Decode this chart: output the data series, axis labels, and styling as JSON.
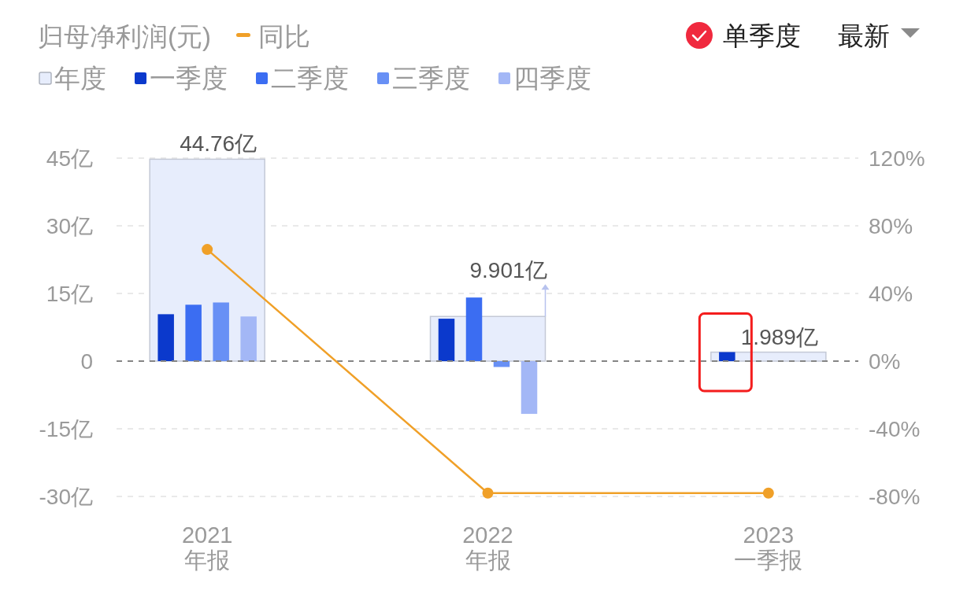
{
  "chart_data": {
    "type": "bar",
    "ylabel": "归母净利润(元)",
    "categories": [
      "2021\n年报",
      "2022\n年报",
      "2023\n一季报"
    ],
    "series": [
      {
        "name": "同比",
        "type": "line",
        "axis": "y2",
        "color": "#f0a028",
        "values": [
          66,
          -78,
          -78
        ]
      },
      {
        "name": "年度",
        "color": "#e7edfc",
        "values": [
          44.76,
          9.901,
          1.989
        ],
        "value_labels": [
          "44.76亿",
          "9.901亿",
          "1.989亿"
        ]
      },
      {
        "name": "一季度",
        "color": "#0b39cc",
        "values": [
          10.4,
          9.4,
          2.0
        ]
      },
      {
        "name": "二季度",
        "color": "#3b6df2",
        "values": [
          12.5,
          14.1,
          null
        ]
      },
      {
        "name": "三季度",
        "color": "#6890f5",
        "values": [
          13.0,
          -1.3,
          null
        ]
      },
      {
        "name": "四季度",
        "color": "#a3b7f6",
        "values": [
          9.9,
          -11.7,
          null
        ]
      }
    ],
    "ylim": [
      -30,
      45
    ],
    "yticks": [
      {
        "value": -30,
        "label": "-30亿"
      },
      {
        "value": -15,
        "label": "-15亿"
      },
      0,
      {
        "value": 15,
        "label": "15亿"
      },
      {
        "value": 30,
        "label": "30亿"
      },
      {
        "value": 45,
        "label": "45亿"
      }
    ],
    "y2lim": [
      -80,
      120
    ],
    "y2ticks": [
      {
        "value": -80,
        "label": "-80%"
      },
      {
        "value": -40,
        "label": "-40%"
      },
      {
        "value": 0,
        "label": "0%"
      },
      {
        "value": 40,
        "label": "40%"
      },
      {
        "value": 80,
        "label": "80%"
      },
      {
        "value": 120,
        "label": "120%"
      }
    ],
    "ref_lines": [
      {
        "axis": "y",
        "value": 0,
        "color": "#858585",
        "line_style": "dashed"
      }
    ],
    "grid": "y",
    "legend": "top left",
    "marker": "circle",
    "annotations": [
      "单季度",
      "最新"
    ]
  }
}
